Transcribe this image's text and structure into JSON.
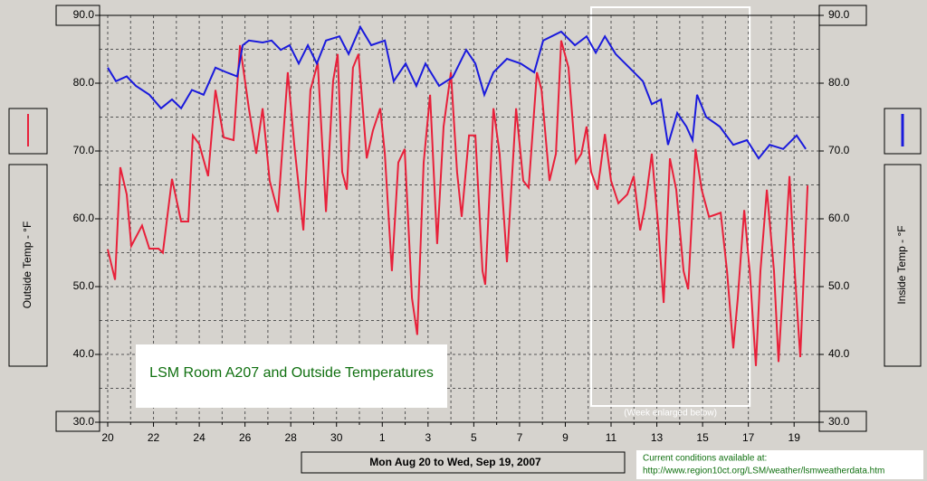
{
  "chart_data": {
    "type": "line",
    "title": "LSM Room A207 and Outside Temperatures",
    "xlabel": "Mon Aug 20 to Wed, Sep 19, 2007",
    "ylabel": "Outside Temp - °F",
    "y2label": "Inside Temp - °F",
    "annotation": "(Week enlarged below)",
    "highlight_range": [
      21.13,
      28.06
    ],
    "footer": [
      "Current conditions available at:",
      "http://www.region10ct.org/LSM/weather/lsmweatherdata.htm"
    ],
    "xlim": [
      -0.356,
      31.1
    ],
    "xticks": [
      {
        "value": 0,
        "label": "20"
      },
      {
        "value": 2,
        "label": "22"
      },
      {
        "value": 4,
        "label": "24"
      },
      {
        "value": 6,
        "label": "26"
      },
      {
        "value": 8,
        "label": "28"
      },
      {
        "value": 10,
        "label": "30"
      },
      {
        "value": 12,
        "label": "1"
      },
      {
        "value": 14,
        "label": "3"
      },
      {
        "value": 16,
        "label": "5"
      },
      {
        "value": 18,
        "label": "7"
      },
      {
        "value": 20,
        "label": "9"
      },
      {
        "value": 22,
        "label": "11"
      },
      {
        "value": 24,
        "label": "13"
      },
      {
        "value": 26,
        "label": "15"
      },
      {
        "value": 28,
        "label": "17"
      },
      {
        "value": 30,
        "label": "19"
      }
    ],
    "xminor": [
      1,
      3,
      5,
      7,
      9,
      11,
      13,
      15,
      17,
      19,
      21,
      23,
      25,
      27,
      29
    ],
    "ylim": [
      30,
      90
    ],
    "yticks": [
      {
        "value": 30,
        "label": "30.0"
      },
      {
        "value": 40,
        "label": "40.0"
      },
      {
        "value": 50,
        "label": "50.0"
      },
      {
        "value": 60,
        "label": "60.0"
      },
      {
        "value": 70,
        "label": "70.0"
      },
      {
        "value": 80,
        "label": "80.0"
      },
      {
        "value": 90,
        "label": "90.0"
      }
    ],
    "yminor": [
      35,
      45,
      55,
      65,
      75,
      85
    ],
    "y2lim": [
      30,
      90
    ],
    "y2ticks": [
      {
        "value": 30,
        "label": "30.0"
      },
      {
        "value": 40,
        "label": "40.0"
      },
      {
        "value": 50,
        "label": "50.0"
      },
      {
        "value": 60,
        "label": "60.0"
      },
      {
        "value": 70,
        "label": "70.0"
      },
      {
        "value": 80,
        "label": "80.0"
      },
      {
        "value": 90,
        "label": "90.0"
      }
    ],
    "grid": true,
    "series": [
      {
        "color": "#e8203a",
        "x": [
          0,
          0.32,
          0.55,
          0.83,
          1.03,
          1.5,
          1.82,
          2.22,
          2.41,
          2.81,
          3.21,
          3.52,
          3.72,
          4.0,
          4.39,
          4.71,
          5.07,
          5.5,
          5.78,
          6.17,
          6.49,
          6.77,
          7.08,
          7.44,
          7.87,
          8.15,
          8.55,
          8.86,
          9.18,
          9.54,
          9.85,
          10.05,
          10.25,
          10.45,
          10.72,
          10.96,
          11.32,
          11.59,
          11.91,
          12.11,
          12.42,
          12.7,
          12.98,
          13.3,
          13.53,
          13.81,
          14.09,
          14.4,
          14.68,
          15.0,
          15.27,
          15.47,
          15.79,
          16.07,
          16.38,
          16.5,
          16.86,
          17.13,
          17.45,
          17.85,
          18.16,
          18.4,
          18.76,
          18.96,
          19.31,
          19.59,
          19.82,
          20.14,
          20.46,
          20.7,
          20.93,
          21.13,
          21.41,
          21.73,
          22.0,
          22.32,
          22.71,
          22.99,
          23.27,
          23.47,
          23.78,
          24.06,
          24.3,
          24.57,
          24.85,
          25.17,
          25.37,
          25.69,
          25.96,
          26.28,
          26.55,
          26.79,
          27.07,
          27.34,
          27.54,
          27.82,
          28.06,
          28.33,
          28.53,
          28.81,
          29.12,
          29.32,
          29.6,
          29.8,
          30.04,
          30.27,
          30.59
        ],
        "values": [
          55.5,
          51,
          67.6,
          63.6,
          56,
          59,
          55.6,
          55.6,
          55,
          65.9,
          59.6,
          59.6,
          72.3,
          71,
          66.3,
          79,
          72,
          71.6,
          85.6,
          76.3,
          69.6,
          76.3,
          65.6,
          61,
          81.6,
          71,
          58.3,
          79,
          83,
          61,
          80.3,
          84.3,
          66.9,
          64.3,
          82.3,
          84.3,
          68.9,
          73,
          76.3,
          69.6,
          52.3,
          68.3,
          70.3,
          48.3,
          42.9,
          68.3,
          78.3,
          56.3,
          73.6,
          81.6,
          66.9,
          60.3,
          72.3,
          72.3,
          52.3,
          50.3,
          76.3,
          69.6,
          53.6,
          76.3,
          65.6,
          64.6,
          81.6,
          79,
          65.6,
          69.6,
          86.3,
          82.3,
          68.3,
          69.6,
          73.6,
          66.9,
          64.3,
          72.5,
          65.6,
          62.3,
          63.6,
          66.3,
          58.3,
          61.6,
          69.6,
          58.9,
          47.6,
          68.9,
          64.3,
          52.3,
          49.6,
          70.3,
          64.3,
          60.3,
          60.6,
          60.9,
          52.3,
          40.9,
          48.3,
          61.3,
          52.3,
          38.3,
          52.3,
          64.3,
          52.3,
          38.9,
          55,
          66.3,
          51.6,
          39.6,
          64.9
        ]
      },
      {
        "color": "#1a1adc",
        "axis": "y2",
        "x": [
          0,
          0.36,
          0.83,
          1.23,
          1.82,
          2.33,
          2.81,
          3.21,
          3.68,
          4.19,
          4.71,
          5.19,
          5.66,
          5.9,
          6.17,
          6.77,
          7.16,
          7.56,
          7.95,
          8.35,
          8.75,
          9.14,
          9.54,
          10.13,
          10.53,
          11.04,
          11.52,
          12.11,
          12.5,
          13.02,
          13.49,
          13.89,
          14.48,
          15.08,
          15.67,
          16.07,
          16.46,
          16.86,
          17.45,
          18.05,
          18.64,
          19.03,
          19.82,
          20.42,
          20.93,
          21.33,
          21.73,
          22.2,
          22.8,
          23.39,
          23.78,
          24.18,
          24.49,
          24.89,
          25.29,
          25.56,
          25.76,
          26.16,
          26.75,
          27.34,
          27.94,
          28.45,
          28.93,
          29.52,
          30.11,
          30.51
        ],
        "values": [
          82.3,
          80.3,
          81,
          79.6,
          78.3,
          76.3,
          77.6,
          76.3,
          79,
          78.3,
          82.3,
          81.6,
          81,
          85.6,
          86.3,
          86,
          86.3,
          84.9,
          85.6,
          82.9,
          85.6,
          82.9,
          86.3,
          86.9,
          84.3,
          88.3,
          85.6,
          86.3,
          80.3,
          82.9,
          79.6,
          82.9,
          79.6,
          80.9,
          84.9,
          82.9,
          78.3,
          81.6,
          83.6,
          82.9,
          81.6,
          86.3,
          87.6,
          85.6,
          86.9,
          84.5,
          86.9,
          84.3,
          82.3,
          80.3,
          76.9,
          77.6,
          70.9,
          75.6,
          73.6,
          71.6,
          78.3,
          75,
          73.6,
          70.9,
          71.6,
          68.9,
          70.9,
          70.3,
          72.3,
          70.3
        ]
      }
    ]
  }
}
